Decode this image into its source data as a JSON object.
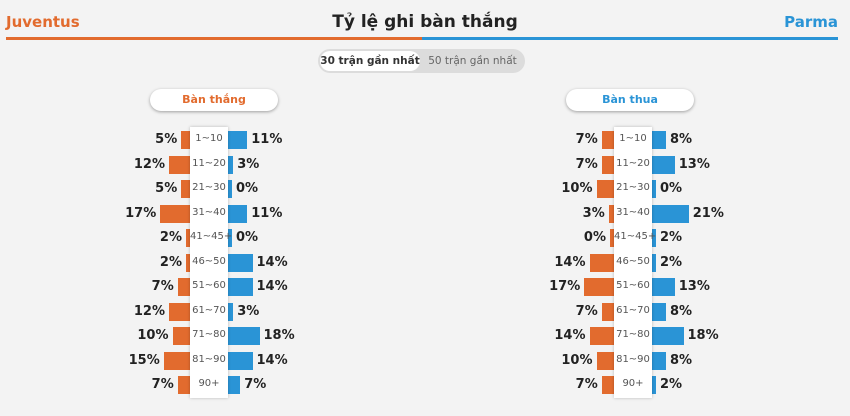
{
  "header": {
    "team_home": "Juventus",
    "team_away": "Parma",
    "title": "Tỷ lệ ghi bàn thắng"
  },
  "tabs": [
    {
      "label": "30 trận gần nhất",
      "active": true
    },
    {
      "label": "50 trận gần nhất",
      "active": false
    }
  ],
  "colors": {
    "home": "#e26b2e",
    "away": "#2a94d6"
  },
  "panels": [
    {
      "title": "Bàn thắng",
      "intervals": [
        "1~10",
        "11~20",
        "21~30",
        "31~40",
        "41~45+",
        "46~50",
        "51~60",
        "61~70",
        "71~80",
        "81~90",
        "90+"
      ],
      "home": [
        5,
        12,
        5,
        17,
        2,
        2,
        7,
        12,
        10,
        15,
        7
      ],
      "away": [
        11,
        3,
        0,
        11,
        0,
        14,
        14,
        3,
        18,
        14,
        7
      ]
    },
    {
      "title": "Bàn thua",
      "intervals": [
        "1~10",
        "11~20",
        "21~30",
        "31~40",
        "41~45+",
        "46~50",
        "51~60",
        "61~70",
        "71~80",
        "81~90",
        "90+"
      ],
      "home": [
        7,
        7,
        10,
        3,
        0,
        14,
        17,
        7,
        14,
        10,
        7
      ],
      "away": [
        8,
        13,
        0,
        21,
        2,
        2,
        13,
        8,
        18,
        8,
        2
      ]
    }
  ]
}
